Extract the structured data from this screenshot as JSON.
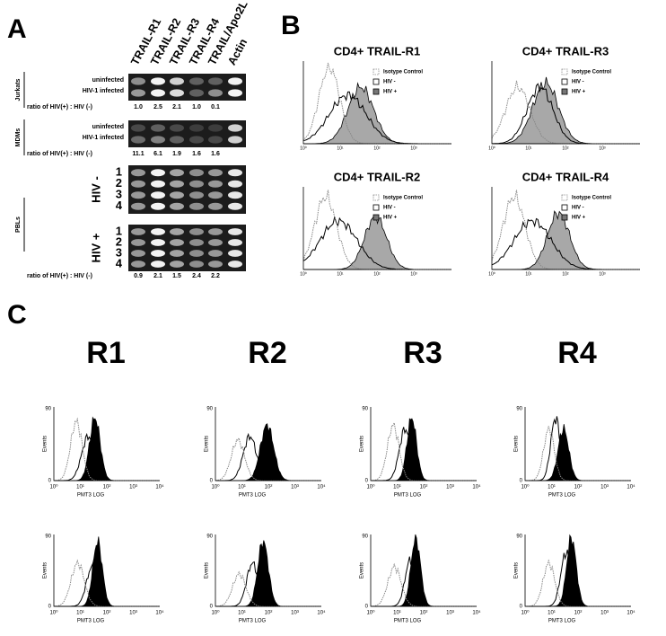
{
  "panel_a": {
    "label": "A",
    "columns": [
      "TRAIL-R1",
      "TRAIL-R2",
      "TRAIL-R3",
      "TRAIL-R4",
      "TRAIL/Apo2L",
      "Actin"
    ],
    "jurkats": {
      "label": "Jurkats",
      "rows": [
        "uninfected",
        "HIV-1 infected"
      ],
      "ratio_label": "ratio of HIV(+) : HIV (-)",
      "ratios": [
        "1.0",
        "2.5",
        "2.1",
        "1.0",
        "0.1"
      ]
    },
    "mdms": {
      "label": "MDMs",
      "rows": [
        "uninfected",
        "HIV-1 infected"
      ],
      "ratio_label": "ratio of HIV(+) : HIV (-)",
      "ratios": [
        "11.1",
        "6.1",
        "1.9",
        "1.6",
        "1.6"
      ]
    },
    "pbls": {
      "label": "PBLs",
      "groups": [
        {
          "label": "HIV -",
          "lanes": [
            "1",
            "2",
            "3",
            "4"
          ]
        },
        {
          "label": "HIV +",
          "lanes": [
            "1",
            "2",
            "3",
            "4"
          ]
        }
      ],
      "ratio_label": "ratio of HIV(+) : HIV (-)",
      "ratios": [
        "0.9",
        "2.1",
        "1.5",
        "2.4",
        "2.2"
      ]
    }
  },
  "panel_b": {
    "label": "B",
    "plots": [
      "CD4+ TRAIL-R1",
      "CD4+ TRAIL-R3",
      "CD4+ TRAIL-R2",
      "CD4+ TRAIL-R4"
    ],
    "legend": [
      "Isotype Control",
      "HIV -",
      "HIV +"
    ],
    "x_ticks": [
      "10⁰",
      "10¹",
      "10²",
      "10³"
    ]
  },
  "panel_c": {
    "label": "C",
    "columns": [
      "R1",
      "R2",
      "R3",
      "R4"
    ],
    "y_axis": {
      "label": "Events",
      "ticks": [
        "90",
        "0"
      ]
    },
    "x_axis": {
      "label": "PMT3 LOG",
      "ticks": [
        "10⁰",
        "10¹",
        "10²",
        "10³",
        "10⁴"
      ]
    }
  }
}
